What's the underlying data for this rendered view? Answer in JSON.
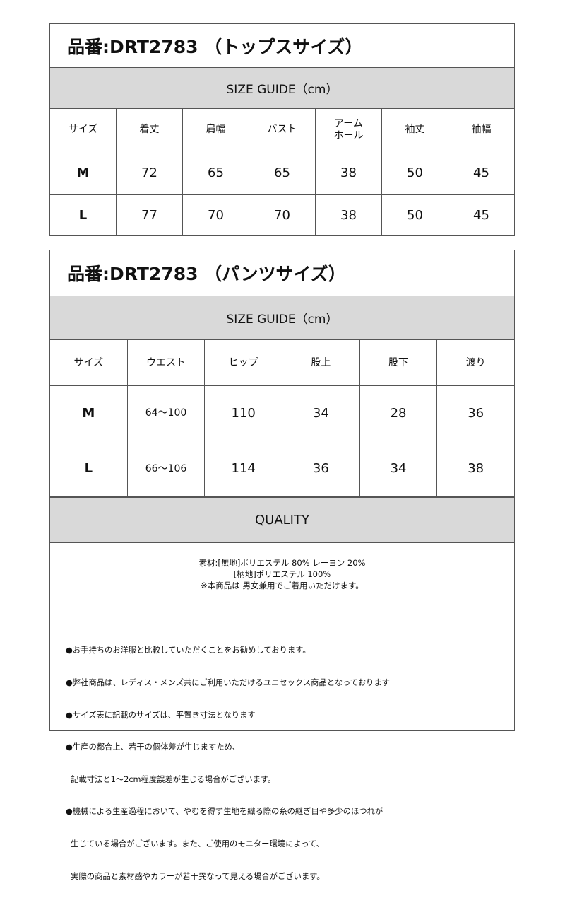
{
  "tops": {
    "title": "品番:DRT2783 （トップスサイズ）",
    "guide": "SIZE GUIDE（cm）",
    "headers": [
      "サイズ",
      "着丈",
      "肩幅",
      "バスト",
      "アーム\nホール",
      "袖丈",
      "袖幅"
    ],
    "rows": [
      [
        "M",
        "72",
        "65",
        "65",
        "38",
        "50",
        "45"
      ],
      [
        "L",
        "77",
        "70",
        "70",
        "38",
        "50",
        "45"
      ]
    ]
  },
  "pants": {
    "title": "品番:DRT2783 （パンツサイズ）",
    "guide": "SIZE GUIDE（cm）",
    "headers": [
      "サイズ",
      "ウエスト",
      "ヒップ",
      "股上",
      "股下",
      "渡り"
    ],
    "rows": [
      [
        "M",
        "64～100",
        "110",
        "34",
        "28",
        "36"
      ],
      [
        "L",
        "66～106",
        "114",
        "36",
        "34",
        "38"
      ]
    ]
  },
  "quality": {
    "heading": "QUALITY",
    "lines": [
      "素材:[無地]ポリエステル 80%  レーヨン 20%",
      "[柄地]ポリエステル 100%",
      "※本商品は 男女兼用でご着用いただけます。"
    ]
  },
  "notes": [
    "●お手持ちのお洋服と比較していただくことをお勧めしております。",
    "●弊社商品は、レディス・メンズ共にご利用いただけるユニセックス商品となっております",
    "●サイズ表に記載のサイズは、平置き寸法となります",
    "●生産の都合上、若干の個体差が生じますため、",
    "  記載寸法と1～2cm程度誤差が生じる場合がございます。",
    "●機械による生産過程において、やむを得ず生地を織る際の糸の継ぎ目や多少のほつれが",
    "  生じている場合がございます。また、ご使用のモニター環境によって、",
    "  実際の商品と素材感やカラーが若干異なって見える場合がございます。"
  ]
}
